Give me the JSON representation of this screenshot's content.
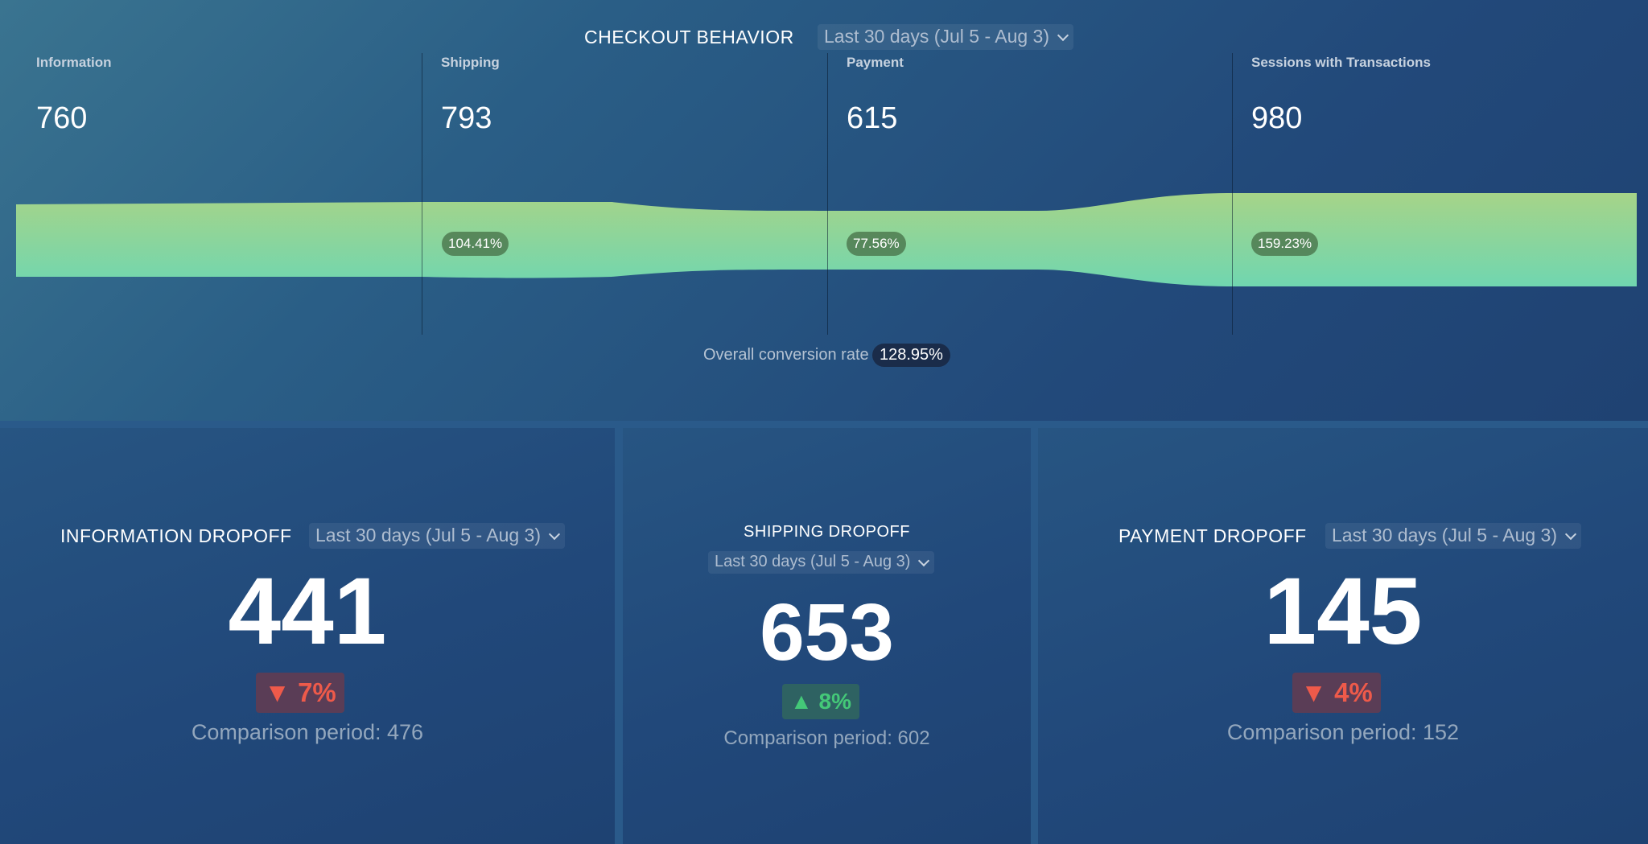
{
  "checkout": {
    "title": "CHECKOUT BEHAVIOR",
    "period": "Last 30 days (Jul 5 - Aug 3)",
    "steps": [
      {
        "label": "Information",
        "value": "760"
      },
      {
        "label": "Shipping",
        "value": "793"
      },
      {
        "label": "Payment",
        "value": "615"
      },
      {
        "label": "Sessions with Transactions",
        "value": "980"
      }
    ],
    "step_rates": [
      "104.41%",
      "77.56%",
      "159.23%"
    ],
    "overall_label": "Overall conversion rate",
    "overall_rate": "128.95%",
    "funnel_colors": {
      "top": "#a6d488",
      "bottom": "#70d6b0"
    }
  },
  "cards": [
    {
      "title": "INFORMATION DROPOFF",
      "period": "Last 30 days (Jul 5 - Aug 3)",
      "value": "441",
      "delta": "7%",
      "delta_direction": "down",
      "comparison": "Comparison period: 476"
    },
    {
      "title": "SHIPPING DROPOFF",
      "period": "Last 30 days (Jul 5 - Aug 3)",
      "value": "653",
      "delta": "8%",
      "delta_direction": "up",
      "comparison": "Comparison period: 602"
    },
    {
      "title": "PAYMENT DROPOFF",
      "period": "Last 30 days (Jul 5 - Aug 3)",
      "value": "145",
      "delta": "4%",
      "delta_direction": "down",
      "comparison": "Comparison period: 152"
    }
  ],
  "colors": {
    "down": "#ee5a4a",
    "up": "#44c878"
  }
}
